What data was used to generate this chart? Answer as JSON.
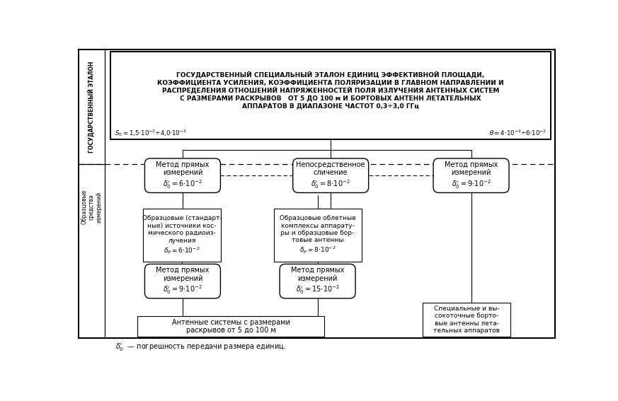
{
  "bg_color": "#ffffff",
  "fig_width": 8.73,
  "fig_height": 5.67,
  "left_top_label": "ГОСУДАРСТВЕННЫЙ ЭТАЛОН",
  "left_bottom_label": "Образцовые\nсредства\nизмерений",
  "main_text": "ГОСУДАРСТВЕННЫЙ СПЕЦИАЛЬНЫЙ ЭТАЛОН ЕДИНИЦ ЭФФЕКТИВНОЙ ПЛОЩАДИ,\nКОЭФФИЦИЕНТА УСИЛЕНИЯ, КОЭФФИЦИЕНТА ПОЛЯРИЗАЦИИ В ГЛАВНОМ НАПРАВЛЕНИИ И\nРАСПРЕДЕЛЕНИЯ ОТНОШЕНИЙ НАПРЯЖЕННОСТЕЙ ПОЛЯ ИЗЛУЧЕНИЯ АНТЕННЫХ СИСТЕМ\nС РАЗМЕРАМИ РАСКРЫВОВ   ОТ 5 ДО 100 м И БОРТОВЫХ АНТЕНН ЛЕТАТЕЛЬНЫХ\nАППАРАТОВ В ДИАПАЗОНЕ ЧАСТОТ 0,3÷3,0 ГГц",
  "s0_label": "$S_0 =1{,}5{\\cdot}10^{-2}{\\div}4{,}0{\\cdot}10^{-2}$",
  "theta_label": "$\\theta =4{\\cdot}10^{-2}{\\div}6{\\cdot}10^{-2}$",
  "oval1_text": "Метод прямых\nизмерений\n$\\delta_0' =6{\\cdot}10^{-2}$",
  "oval2_text": "Непосредственное\nсличение\n$\\delta_0' =8{\\cdot}10^{-2}$",
  "oval3_text": "Метод прямых\nизмерений\n$\\delta_0' =9{\\cdot}10^{-2}$",
  "rect1_text": "Образцовые (стандарт-\nные) источники кос-\nмического радиоиз-\nлучения\n$\\delta_\\theta =6{\\cdot}10^{-2}$",
  "rect2_text": "Образцовые облетные\nкомплексы аппарату-\nры и образцовые бор-\nтовые антенны\n$\\delta_p =8{\\cdot}10^{-2}$",
  "oval4_text": "Метод прямых\nизмерений\n$\\delta_0' =9{\\cdot}10^{-2}$",
  "oval5_text": "Метод прямых\nизмерений\n$\\delta_0' =15{\\cdot}10^{-2}$",
  "rect3_text": "Антенные системы с размерами\nраскрывов от 5 до 100 м",
  "rect4_text": "Специальные и вы-\nсокоточные борто-\nвые антенны лета-\nтельных аппаратов",
  "footnote": "$\\delta_0'$  — погрешность передачи размера единиц."
}
